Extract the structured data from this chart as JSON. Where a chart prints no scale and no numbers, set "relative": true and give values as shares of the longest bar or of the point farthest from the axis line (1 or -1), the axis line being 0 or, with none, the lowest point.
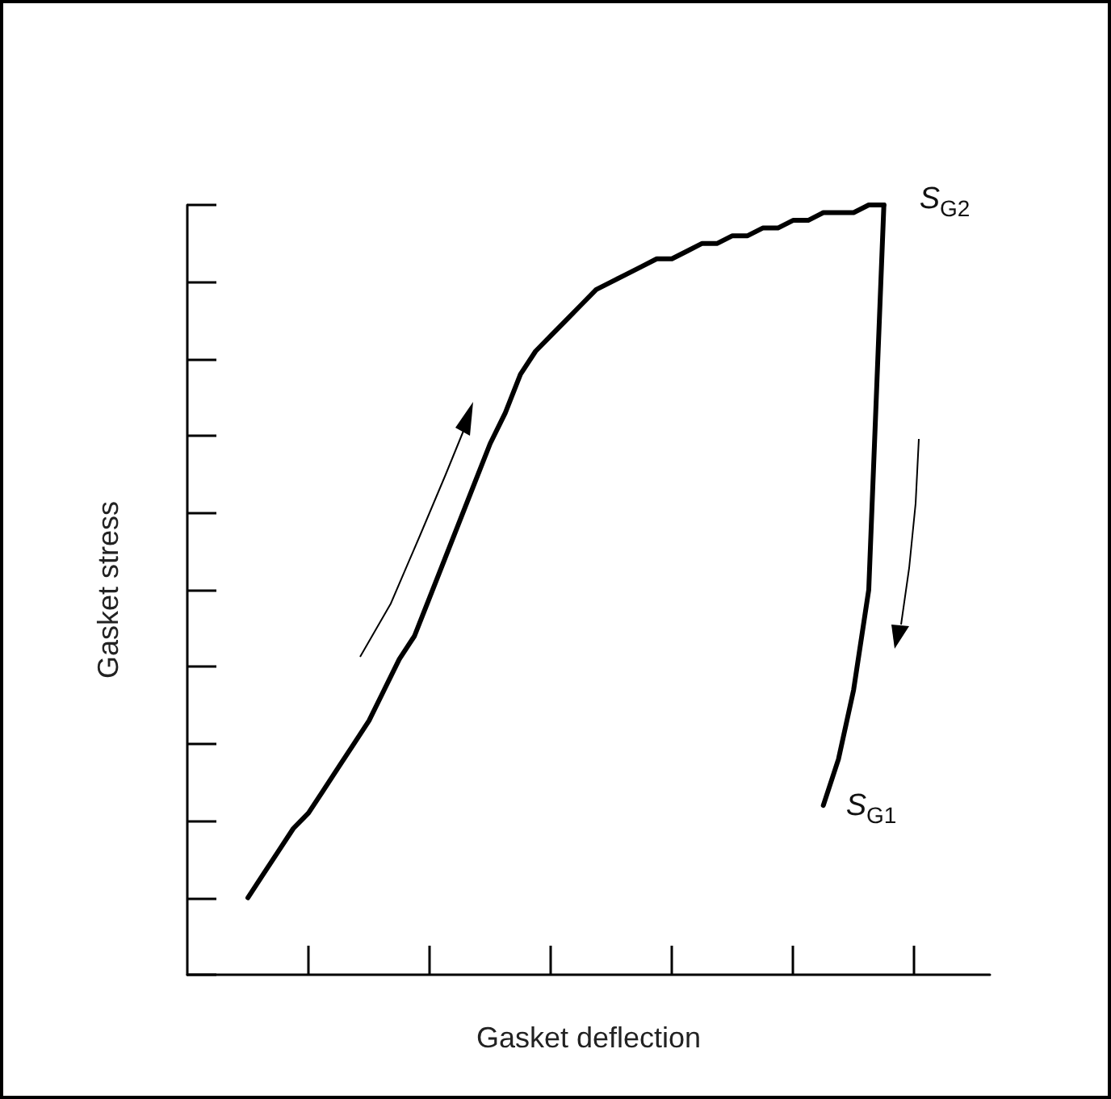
{
  "chart_data": {
    "type": "line",
    "relative": true,
    "xlabel": "Gasket deflection",
    "ylabel": "Gasket stress",
    "categories": [
      null,
      null,
      null,
      null,
      null,
      null,
      null,
      null,
      null,
      null,
      null,
      null,
      null,
      null,
      null,
      null,
      null,
      null,
      null,
      null,
      null,
      null,
      null,
      null,
      null,
      null,
      null,
      null,
      null,
      null,
      null,
      null,
      null,
      null,
      null,
      null,
      null,
      null,
      null,
      null,
      null,
      null,
      null,
      null,
      null,
      null,
      null,
      null,
      null,
      null,
      null,
      null,
      null,
      null
    ],
    "series": [
      {
        "color": "#000000",
        "values": [
          null,
          null,
          null,
          null,
          0.1,
          0.13,
          0.16,
          0.19,
          0.21,
          0.24,
          0.27,
          0.3,
          0.33,
          0.37,
          0.41,
          0.44,
          0.49,
          0.54,
          0.59,
          0.64,
          0.69,
          0.73,
          0.78,
          0.81,
          0.83,
          0.85,
          0.87,
          0.89,
          0.9,
          0.91,
          0.92,
          0.93,
          0.93,
          0.94,
          0.95,
          0.95,
          0.96,
          0.96,
          0.97,
          0.97,
          0.98,
          0.98,
          0.99,
          0.99,
          0.99,
          1.0,
          1,
          null,
          null,
          null,
          null,
          null,
          null,
          null
        ]
      },
      {
        "color": "#000000",
        "values": [
          null,
          null,
          null,
          null,
          null,
          null,
          null,
          null,
          null,
          null,
          null,
          null,
          null,
          null,
          null,
          null,
          null,
          null,
          null,
          null,
          null,
          null,
          null,
          null,
          null,
          null,
          null,
          null,
          null,
          null,
          null,
          null,
          null,
          null,
          null,
          null,
          null,
          null,
          null,
          null,
          null,
          null,
          0.22,
          0.28,
          0.37,
          0.5,
          1,
          null,
          null,
          null,
          null,
          null,
          null,
          null
        ]
      }
    ],
    "annotations": [
      "S$_{G2}$",
      "S$_{G1}$"
    ]
  }
}
